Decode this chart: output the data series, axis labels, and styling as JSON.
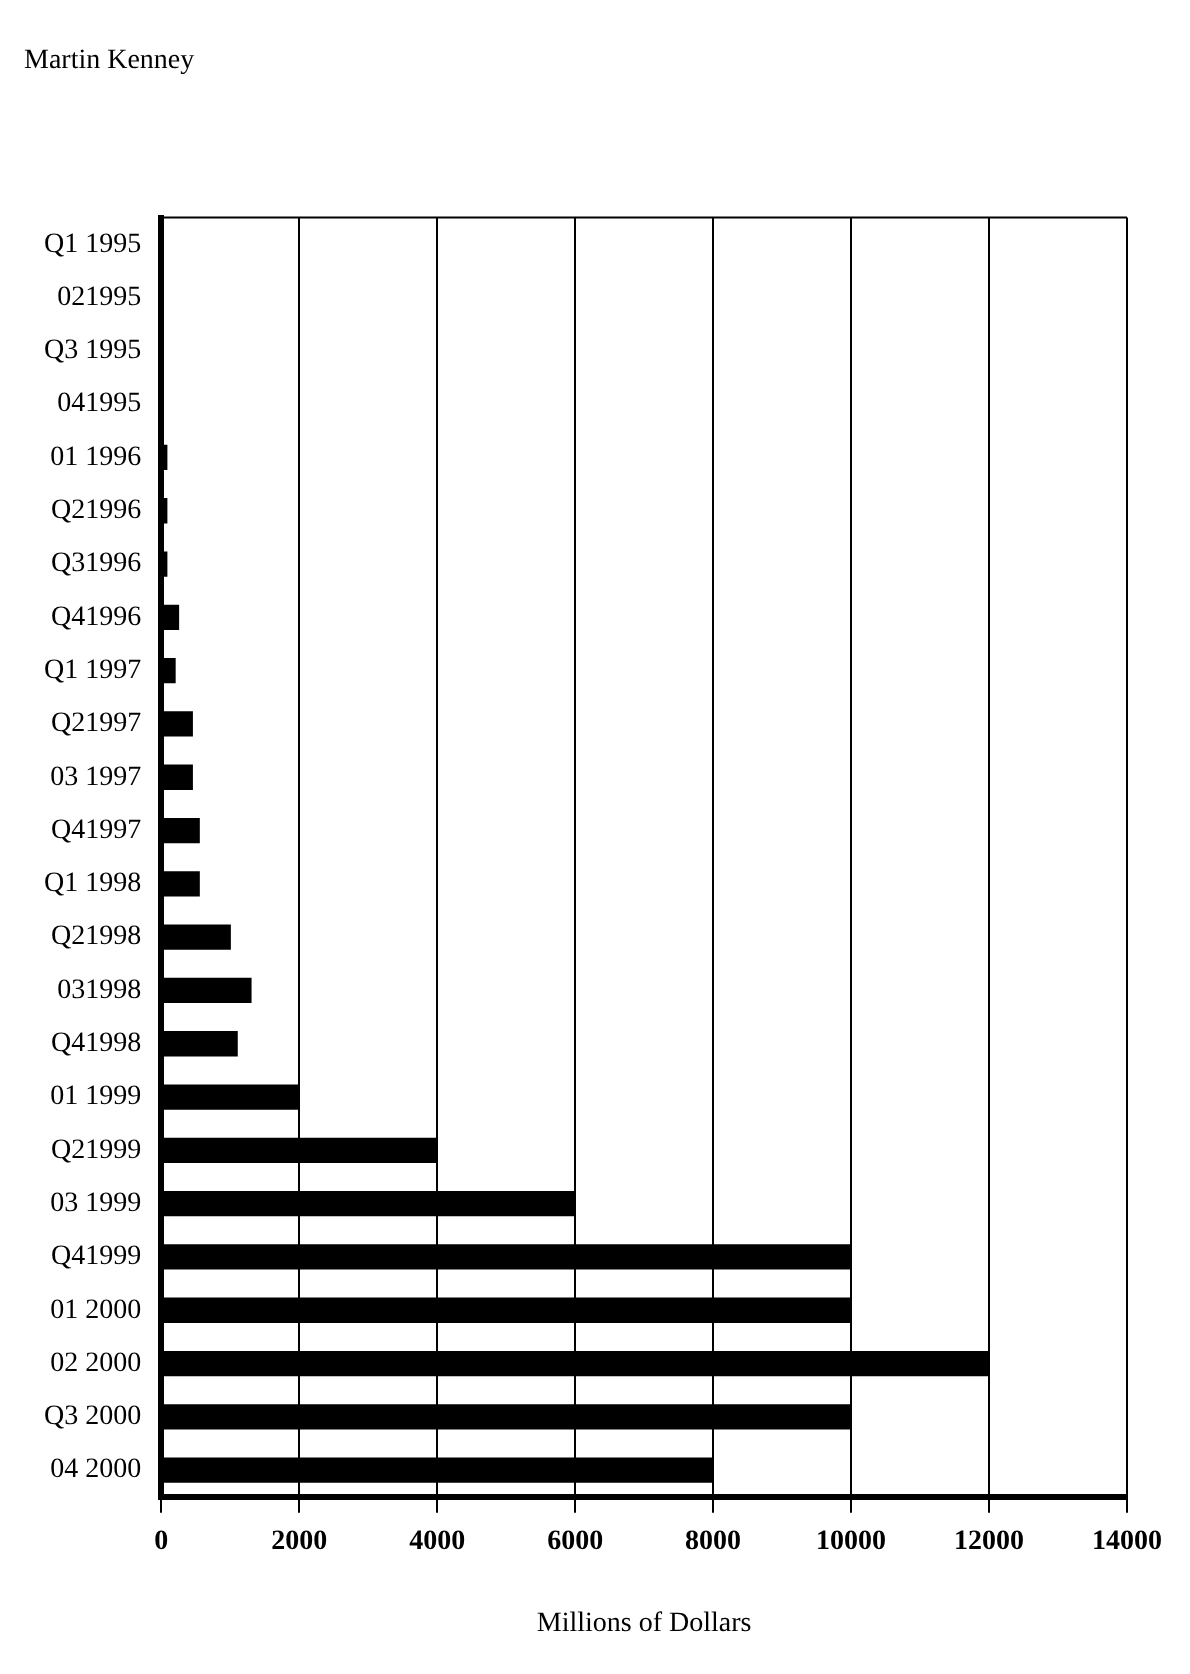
{
  "chart_data": {
    "type": "bar",
    "orientation": "horizontal",
    "title": "Martin Kenney",
    "xlabel": "Millions of Dollars",
    "categories": [
      "Q1 1995",
      "021995",
      "Q3 1995",
      "041995",
      "01 1996",
      "Q21996",
      "Q31996",
      "Q41996",
      "Q1 1997",
      "Q21997",
      "03 1997",
      "Q41997",
      "Q1 1998",
      "Q21998",
      "031998",
      "Q41998",
      "01 1999",
      "Q21999",
      "03 1999",
      "Q41999",
      "01 2000",
      "02 2000",
      "Q3 2000",
      "04 2000"
    ],
    "values": [
      0,
      0,
      0,
      20,
      80,
      80,
      80,
      250,
      200,
      450,
      450,
      550,
      550,
      1000,
      1300,
      1100,
      2000,
      4000,
      6000,
      10000,
      10000,
      12000,
      10000,
      8000
    ],
    "color": "#000000",
    "xlim": [
      0,
      14000
    ],
    "xticks": [
      0,
      2000,
      4000,
      6000,
      8000,
      10000,
      12000,
      14000
    ],
    "grid": "x",
    "legend": false
  }
}
